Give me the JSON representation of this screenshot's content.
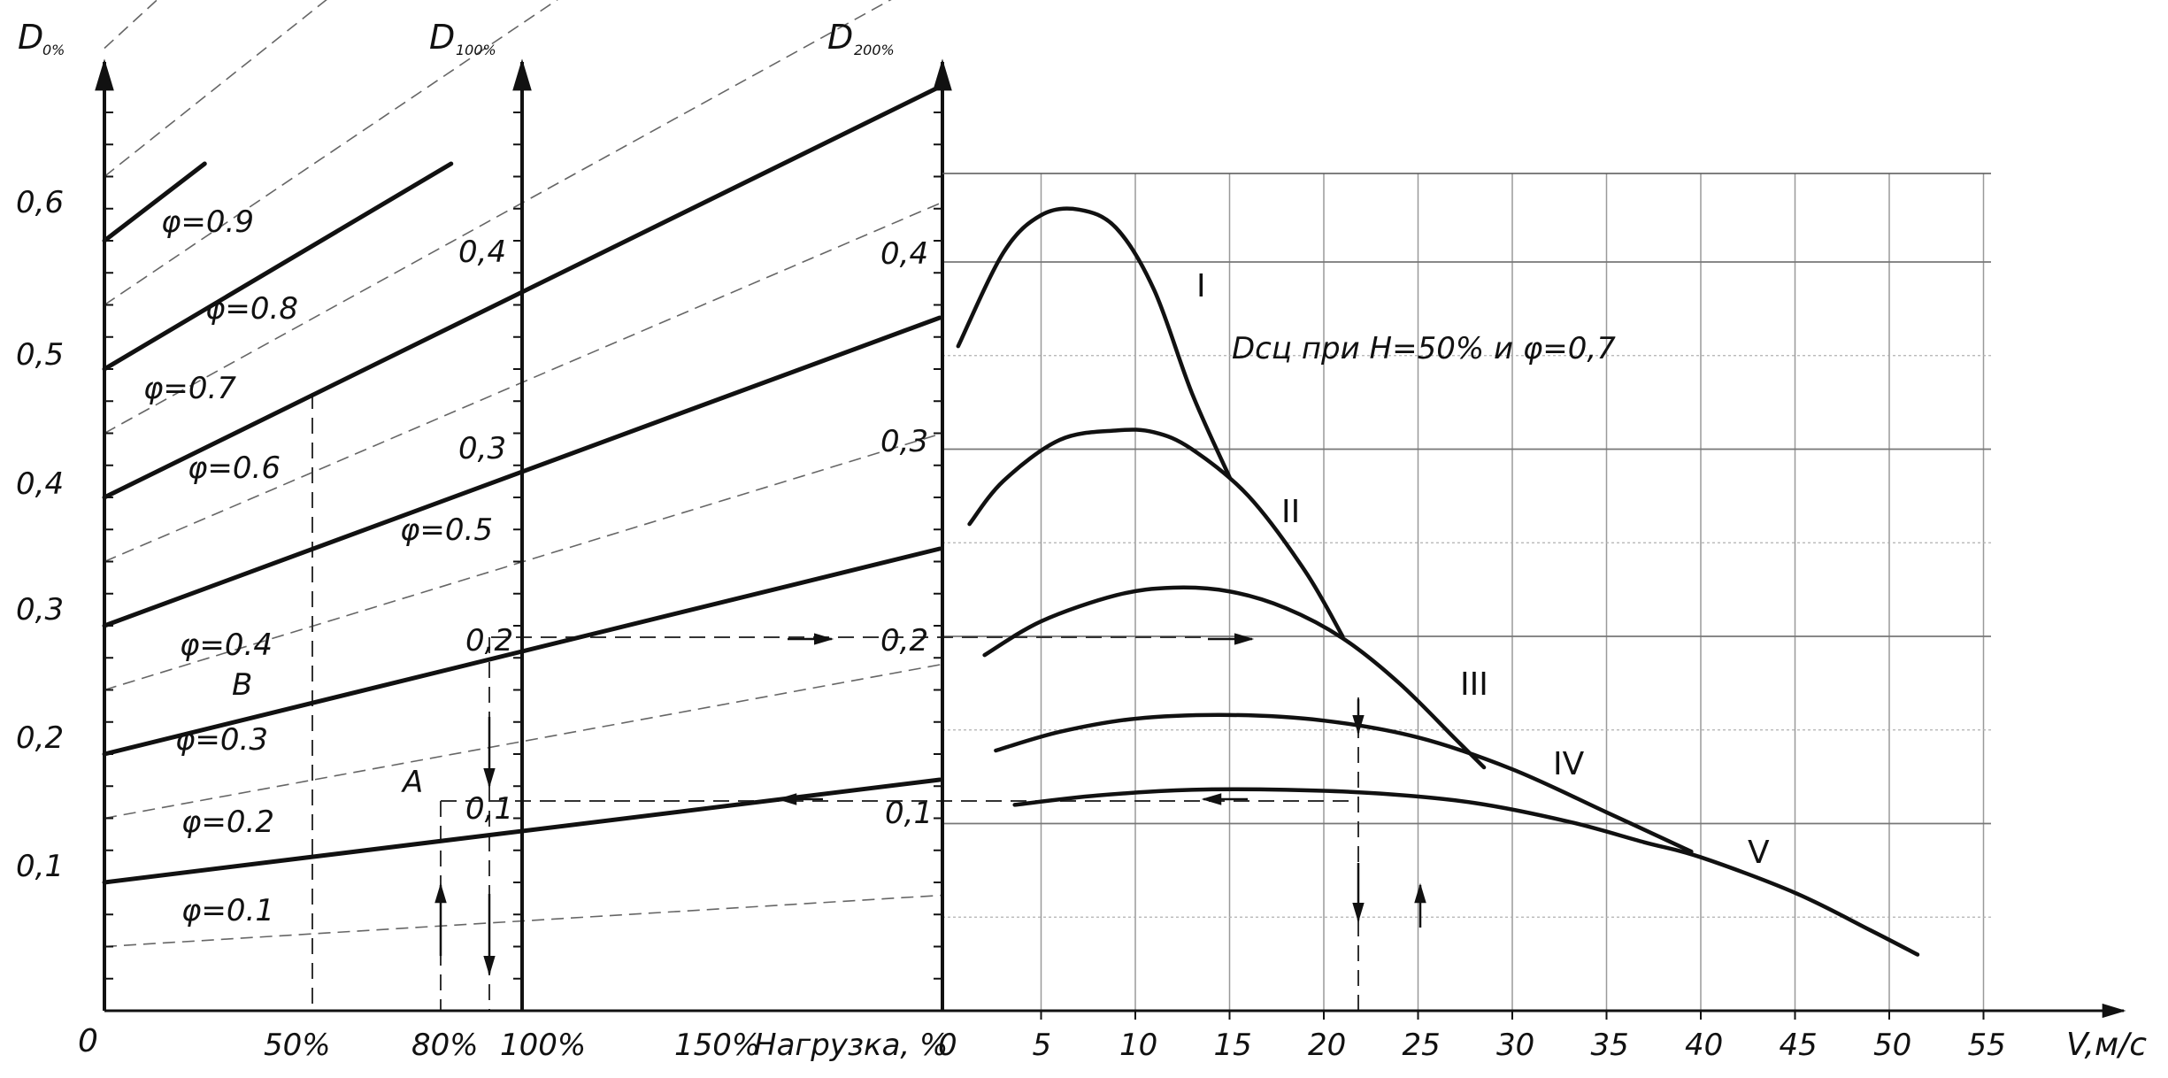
{
  "chart_data": {
    "type": "line",
    "title": "",
    "left_nomogram": {
      "y_axis_labels": {
        "load_0": "D",
        "load_0_sub": "0%",
        "load_100": "D",
        "load_100_sub": "100%",
        "load_200": "D",
        "load_200_sub": "200%"
      },
      "origin_label": "0",
      "y_ticks_0pct": [
        "0,1",
        "0,2",
        "0,3",
        "0,4",
        "0,5",
        "0,6"
      ],
      "y_ticks_100pct": [
        "0,1",
        "0,2",
        "0,3",
        "0,4"
      ],
      "y_ticks_200pct": [
        "0,1",
        "0,2",
        "0,3",
        "0,4"
      ],
      "x_ticks": [
        "50%",
        "80%",
        "100%",
        "150%"
      ],
      "xlabel": "Нагрузка, %",
      "phi_labels": [
        "φ=0.1",
        "φ=0.2",
        "φ=0.3",
        "φ=0.4",
        "φ=0.5",
        "φ=0.6",
        "φ=0.7",
        "φ=0.8",
        "φ=0.9"
      ],
      "point_labels": [
        "A",
        "B"
      ],
      "solid_lines": [
        {
          "x": [
            0,
            200
          ],
          "y": [
            0.1,
            0.18
          ]
        },
        {
          "x": [
            0,
            200
          ],
          "y": [
            0.2,
            0.36
          ]
        },
        {
          "x": [
            0,
            200
          ],
          "y": [
            0.3,
            0.54
          ]
        },
        {
          "x": [
            0,
            200
          ],
          "y": [
            0.4,
            0.72
          ]
        },
        {
          "x": [
            0,
            83
          ],
          "y": [
            0.5,
            0.66
          ]
        },
        {
          "x": [
            0,
            24
          ],
          "y": [
            0.6,
            0.66
          ]
        }
      ],
      "dashed_lines_phi": [
        0.05,
        0.15,
        0.25,
        0.35,
        0.45,
        0.55,
        0.65,
        0.75,
        0.85,
        0.95,
        1.05
      ]
    },
    "right_chart": {
      "annotation": "Dсц при H=50% и φ=0,7",
      "xlabel": "V,м/с",
      "x_ticks": [
        "0",
        "5",
        "10",
        "15",
        "20",
        "25",
        "30",
        "35",
        "40",
        "45",
        "50",
        "55"
      ],
      "y_ticks": [
        "0,1",
        "0,2",
        "0,3",
        "0,4"
      ],
      "xlim": [
        0,
        60
      ],
      "ylim": [
        0,
        0.45
      ],
      "series": [
        {
          "name": "I",
          "x": [
            0.6,
            3,
            5,
            7,
            9,
            11,
            13,
            15
          ],
          "y": [
            0.355,
            0.405,
            0.425,
            0.428,
            0.418,
            0.385,
            0.33,
            0.285
          ]
        },
        {
          "name": "II",
          "x": [
            1.2,
            3,
            6,
            9,
            11,
            13,
            16,
            19,
            21
          ],
          "y": [
            0.26,
            0.283,
            0.305,
            0.31,
            0.309,
            0.3,
            0.275,
            0.235,
            0.2
          ]
        },
        {
          "name": "III",
          "x": [
            2,
            5,
            9,
            12,
            15,
            18,
            21,
            24,
            27,
            28.5
          ],
          "y": [
            0.19,
            0.208,
            0.222,
            0.226,
            0.224,
            0.215,
            0.199,
            0.175,
            0.145,
            0.13
          ]
        },
        {
          "name": "IV",
          "x": [
            2.6,
            6,
            10,
            15,
            20,
            25,
            30,
            35,
            39.5
          ],
          "y": [
            0.139,
            0.149,
            0.156,
            0.158,
            0.155,
            0.146,
            0.129,
            0.106,
            0.085
          ]
        },
        {
          "name": "V",
          "x": [
            3.6,
            8,
            13,
            18,
            23,
            28,
            33,
            37,
            40,
            45,
            49,
            51.5
          ],
          "y": [
            0.11,
            0.115,
            0.118,
            0.118,
            0.116,
            0.111,
            0.101,
            0.09,
            0.082,
            0.063,
            0.043,
            0.03
          ]
        }
      ]
    }
  }
}
